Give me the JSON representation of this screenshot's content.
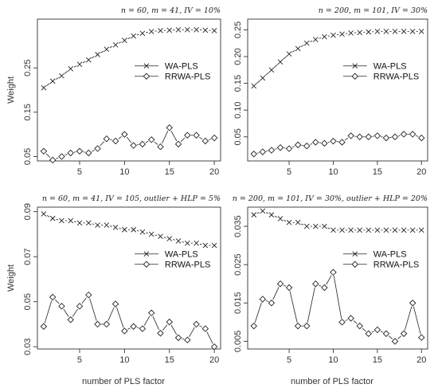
{
  "figure": {
    "xlabel": "number of PLS factor"
  },
  "chart_data": [
    {
      "type": "line",
      "title": "n = 60, m = 41, IV = 10%",
      "xlabel": "",
      "ylabel": "Weight",
      "x": [
        1,
        2,
        3,
        4,
        5,
        6,
        7,
        8,
        9,
        10,
        11,
        12,
        13,
        14,
        15,
        16,
        17,
        18,
        19,
        20
      ],
      "xticks": [
        5,
        10,
        15,
        20
      ],
      "xlim": [
        0.3,
        20.7
      ],
      "yticks": [
        0.05,
        0.15,
        0.25
      ],
      "ylim": [
        0.04,
        0.36
      ],
      "legend": "center-right",
      "series": [
        {
          "name": "WA-PLS",
          "marker": "x",
          "values": [
            0.205,
            0.22,
            0.232,
            0.248,
            0.258,
            0.268,
            0.28,
            0.292,
            0.302,
            0.312,
            0.322,
            0.328,
            0.332,
            0.334,
            0.335,
            0.336,
            0.336,
            0.336,
            0.335,
            0.334
          ]
        },
        {
          "name": "RRWA-PLS",
          "marker": "diamond",
          "values": [
            0.062,
            0.042,
            0.05,
            0.058,
            0.062,
            0.058,
            0.068,
            0.09,
            0.085,
            0.1,
            0.075,
            0.078,
            0.088,
            0.072,
            0.115,
            0.078,
            0.098,
            0.098,
            0.085,
            0.092
          ]
        }
      ]
    },
    {
      "type": "line",
      "title": "n = 200, m = 101, IV = 30%",
      "xlabel": "",
      "ylabel": "",
      "x": [
        1,
        2,
        3,
        4,
        5,
        6,
        7,
        8,
        9,
        10,
        11,
        12,
        13,
        14,
        15,
        16,
        17,
        18,
        19,
        20
      ],
      "xticks": [
        5,
        10,
        15,
        20
      ],
      "xlim": [
        0.3,
        20.7
      ],
      "yticks": [
        0.05,
        0.1,
        0.15,
        0.2,
        0.25
      ],
      "ylabel_format": "fixed2",
      "ylim": [
        0.005,
        0.27
      ],
      "legend": "center-right",
      "series": [
        {
          "name": "WA-PLS",
          "marker": "x",
          "values": [
            0.145,
            0.16,
            0.175,
            0.19,
            0.205,
            0.215,
            0.225,
            0.232,
            0.237,
            0.24,
            0.242,
            0.244,
            0.245,
            0.246,
            0.247,
            0.247,
            0.247,
            0.247,
            0.247,
            0.247
          ]
        },
        {
          "name": "RRWA-PLS",
          "marker": "diamond",
          "values": [
            0.018,
            0.022,
            0.025,
            0.03,
            0.028,
            0.035,
            0.033,
            0.04,
            0.038,
            0.042,
            0.04,
            0.052,
            0.05,
            0.05,
            0.052,
            0.048,
            0.05,
            0.055,
            0.055,
            0.048
          ]
        }
      ]
    },
    {
      "type": "line",
      "title": "n = 60, m = 41, IV = 105, outlier + HLP = 5%",
      "xlabel": "number of PLS factor",
      "ylabel": "Weight",
      "x": [
        1,
        2,
        3,
        4,
        5,
        6,
        7,
        8,
        9,
        10,
        11,
        12,
        13,
        14,
        15,
        16,
        17,
        18,
        19,
        20
      ],
      "xticks": [
        5,
        10,
        15,
        20
      ],
      "xlim": [
        0.3,
        20.7
      ],
      "yticks": [
        0.03,
        0.05,
        0.07,
        0.09
      ],
      "ylim": [
        0.029,
        0.092
      ],
      "legend": "center-right",
      "series": [
        {
          "name": "WA-PLS",
          "marker": "x",
          "values": [
            0.089,
            0.087,
            0.086,
            0.086,
            0.085,
            0.085,
            0.084,
            0.084,
            0.083,
            0.082,
            0.082,
            0.081,
            0.08,
            0.079,
            0.078,
            0.077,
            0.076,
            0.076,
            0.075,
            0.075
          ]
        },
        {
          "name": "RRWA-PLS",
          "marker": "diamond",
          "values": [
            0.039,
            0.052,
            0.048,
            0.042,
            0.048,
            0.053,
            0.04,
            0.04,
            0.049,
            0.037,
            0.039,
            0.038,
            0.045,
            0.036,
            0.041,
            0.034,
            0.033,
            0.04,
            0.038,
            0.03
          ]
        }
      ]
    },
    {
      "type": "line",
      "title": "n = 200, m = 101, IV = 30%, outlier + HLP = 20%",
      "xlabel": "number of PLS factor",
      "ylabel": "",
      "x": [
        1,
        2,
        3,
        4,
        5,
        6,
        7,
        8,
        9,
        10,
        11,
        12,
        13,
        14,
        15,
        16,
        17,
        18,
        19,
        20
      ],
      "xticks": [
        5,
        10,
        15,
        20
      ],
      "xlim": [
        0.3,
        20.7
      ],
      "yticks": [
        0.005,
        0.015,
        0.025,
        0.035
      ],
      "ylim": [
        0.003,
        0.04
      ],
      "legend": "center-right",
      "series": [
        {
          "name": "WA-PLS",
          "marker": "x",
          "values": [
            0.038,
            0.039,
            0.038,
            0.037,
            0.036,
            0.036,
            0.035,
            0.035,
            0.035,
            0.034,
            0.034,
            0.034,
            0.034,
            0.034,
            0.034,
            0.034,
            0.034,
            0.034,
            0.034,
            0.034
          ]
        },
        {
          "name": "RRWA-PLS",
          "marker": "diamond",
          "values": [
            0.009,
            0.016,
            0.015,
            0.02,
            0.019,
            0.009,
            0.009,
            0.02,
            0.019,
            0.023,
            0.01,
            0.011,
            0.009,
            0.007,
            0.008,
            0.007,
            0.005,
            0.007,
            0.015,
            0.006
          ]
        }
      ]
    }
  ]
}
